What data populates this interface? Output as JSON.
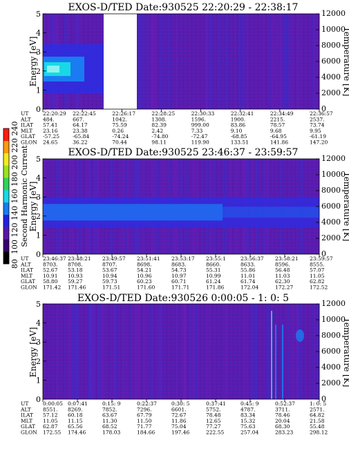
{
  "colorbar": {
    "label": "Second Harmonic Current",
    "ticks": [
      "80",
      "100",
      "120",
      "140",
      "160",
      "180",
      "200",
      "220",
      "240"
    ],
    "colors": [
      "#000000",
      "#3a006e",
      "#5a16a8",
      "#2222e0",
      "#1a7cf0",
      "#18d8e6",
      "#2ed35a",
      "#9ce21e",
      "#f2ea20",
      "#ff9a10",
      "#ff1c10"
    ]
  },
  "chart_data": [
    {
      "type": "heatmap",
      "title": "EXOS-D/TED  Date:930525  22:20:29 - 22:38:17",
      "ylabel": "Energy [eV]",
      "y2label": "Temperature [K]",
      "ylim": [
        0,
        5
      ],
      "y2lim": [
        0,
        12000
      ],
      "yticks": [
        "0",
        "1",
        "2",
        "3",
        "4",
        "5"
      ],
      "y2ticks": [
        "0",
        "2000",
        "4000",
        "6000",
        "8000",
        "10000",
        "12000"
      ],
      "features": {
        "band_energy": 2.1,
        "band_extent": "start",
        "gap": true
      },
      "ephemeris": {
        "labels": [
          "UT",
          "ALT",
          "ILAT",
          "MLT",
          "GLAT",
          "GLON"
        ],
        "columns": [
          [
            "22:20:29",
            "484.",
            "57.41",
            "23.16",
            "-57.25",
            "24.65"
          ],
          [
            "22:22:45",
            "667.",
            "64.17",
            "23.38",
            "-65.84",
            "36.22"
          ],
          [
            "22:26:17",
            "1042.",
            "75.59",
            "0.26",
            "-74.24",
            "70.44"
          ],
          [
            "22:28:25",
            "1308.",
            "82.39",
            "2.42",
            "-74.80",
            "98.11"
          ],
          [
            "22:30:33",
            "1596.",
            "999.00",
            "7.33",
            "-72.47",
            "119.90"
          ],
          [
            "22:32:41",
            "1900.",
            "83.86",
            "9.10",
            "-68.85",
            "133.51"
          ],
          [
            "22:34:49",
            "2215.",
            "78.57",
            "9.68",
            "-64.95",
            "141.86"
          ],
          [
            "22:36:57",
            "2537.",
            "73.74",
            "9.95",
            "-61.19",
            "147.20"
          ]
        ]
      }
    },
    {
      "type": "heatmap",
      "title": "EXOS-D/TED   Date:930525  23:46:37 - 23:59:57",
      "ylabel": "Energy [eV]",
      "y2label": "Temperature [K]",
      "ylim": [
        0,
        5
      ],
      "y2lim": [
        0,
        12000
      ],
      "yticks": [
        "0",
        "1",
        "2",
        "3",
        "4",
        "5"
      ],
      "y2ticks": [
        "0",
        "2000",
        "4000",
        "6000",
        "8000",
        "10000",
        "12000"
      ],
      "features": {
        "band_energy": 2.2,
        "band_extent": "full",
        "gap": false
      },
      "ephemeris": {
        "labels": [
          "UT",
          "ALT",
          "ILAT",
          "MLT",
          "GLAT",
          "GLON"
        ],
        "columns": [
          [
            "23:46:37",
            "8703.",
            "52.67",
            "10.91",
            "58.80",
            "171.42"
          ],
          [
            "23:48:21",
            "8708.",
            "53.18",
            "10.93",
            "59.27",
            "171.46"
          ],
          [
            "23:49:57",
            "8707.",
            "53.67",
            "10.94",
            "59.73",
            "171.51"
          ],
          [
            "23:51:41",
            "8698.",
            "54.21",
            "10.96",
            "60.23",
            "171.60"
          ],
          [
            "23:53:17",
            "8683.",
            "54.73",
            "10.97",
            "60.71",
            "171.71"
          ],
          [
            "23:55:1",
            "8660.",
            "55.31",
            "10.99",
            "61.24",
            "171.86"
          ],
          [
            "23:56:37",
            "8633.",
            "55.86",
            "11.01",
            "61.74",
            "172.04"
          ],
          [
            "23:58:21",
            "8596.",
            "56.48",
            "11.03",
            "62.30",
            "172.27"
          ],
          [
            "23:59:57",
            "8555.",
            "57.07",
            "11.05",
            "62.82",
            "172.52"
          ]
        ]
      }
    },
    {
      "type": "heatmap",
      "title": "EXOS-D/TED   Date:930526   0:00:05 - 1: 0: 5",
      "ylabel": "Energy [eV]",
      "y2label": "Temperature [K]",
      "ylim": [
        0,
        5
      ],
      "y2lim": [
        0,
        12000
      ],
      "yticks": [
        "0",
        "1",
        "2",
        "3",
        "4",
        "5"
      ],
      "y2ticks": [
        "0",
        "2000",
        "4000",
        "6000",
        "8000",
        "10000",
        "12000"
      ],
      "features": {
        "band_energy": null,
        "band_extent": "none",
        "gap": false,
        "spikes": [
          0.825,
          0.84,
          0.865
        ]
      },
      "ephemeris": {
        "labels": [
          "UT",
          "ALT",
          "ILAT",
          "MLT",
          "GLAT",
          "GLON"
        ],
        "columns": [
          [
            "0:00:05",
            "8551.",
            "57.12",
            "11.05",
            "62.87",
            "172.55"
          ],
          [
            "0:07:41",
            "8269.",
            "60.18",
            "11.15",
            "65.56",
            "174.46"
          ],
          [
            "0:15: 9",
            "7852.",
            "63.67",
            "11.30",
            "68.52",
            "178.03"
          ],
          [
            "0:22:37",
            "7296.",
            "67.79",
            "11.50",
            "71.77",
            "184.66"
          ],
          [
            "0:30: 5",
            "6601.",
            "72.67",
            "11.86",
            "75.04",
            "197.46"
          ],
          [
            "0:37:41",
            "5752.",
            "78.48",
            "12.65",
            "77.27",
            "222.55"
          ],
          [
            "0:45: 9",
            "4787.",
            "83.34",
            "15.32",
            "75.63",
            "257.04"
          ],
          [
            "0:52:37",
            "3711.",
            "78.46",
            "20.04",
            "68.30",
            "283.23"
          ],
          [
            "1: 0: 5",
            "2571.",
            "64.82",
            "21.58",
            "55.48",
            "298.12"
          ]
        ]
      }
    }
  ]
}
